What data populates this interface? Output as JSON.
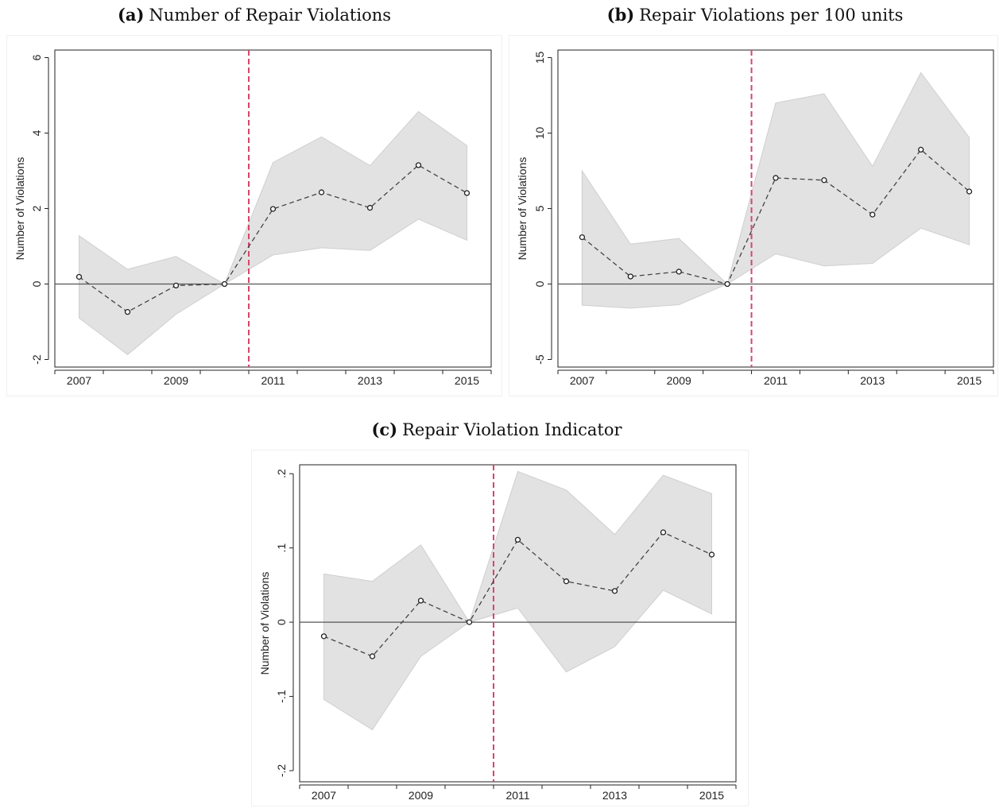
{
  "chart_data": [
    {
      "type": "line",
      "panel_label": "(a)",
      "title": "Number of Repair Violations",
      "ylabel": "Number of Violations",
      "xlabel": "",
      "x_ticks": [
        "2007",
        "2009",
        "2011",
        "2013",
        "2015"
      ],
      "y_ticks": [
        "-2",
        "0",
        "2",
        "4",
        "6"
      ],
      "ylim": [
        -2.2,
        6.2
      ],
      "xlim": [
        2006.5,
        2015.5
      ],
      "event_line_x": 2010.5,
      "x": [
        2007,
        2008,
        2009,
        2010,
        2011,
        2012,
        2013,
        2014,
        2015
      ],
      "series": [
        {
          "name": "",
          "values": [
            0.19,
            -0.74,
            -0.04,
            0,
            1.99,
            2.43,
            2.02,
            3.15,
            2.41
          ]
        }
      ],
      "ci_lower": [
        -0.9,
        -1.87,
        -0.8,
        0,
        0.77,
        0.96,
        0.89,
        1.72,
        1.16
      ],
      "ci_upper": [
        1.28,
        0.39,
        0.73,
        0,
        3.22,
        3.9,
        3.14,
        4.57,
        3.67
      ],
      "colors": {
        "event_line": "#d6466b",
        "band": "#e2e2e2",
        "series": "#444444"
      }
    },
    {
      "type": "line",
      "panel_label": "(b)",
      "title": "Repair Violations per 100 units",
      "ylabel": "Number of Violations",
      "xlabel": "",
      "x_ticks": [
        "2007",
        "2009",
        "2011",
        "2013",
        "2015"
      ],
      "y_ticks": [
        "-5",
        "0",
        "5",
        "10",
        "15"
      ],
      "ylim": [
        -5.5,
        15.5
      ],
      "xlim": [
        2006.5,
        2015.5
      ],
      "event_line_x": 2010.5,
      "x": [
        2007,
        2008,
        2009,
        2010,
        2011,
        2012,
        2013,
        2014,
        2015
      ],
      "series": [
        {
          "name": "",
          "values": [
            3.1,
            0.5,
            0.82,
            0,
            7.03,
            6.88,
            4.6,
            8.9,
            6.13
          ]
        }
      ],
      "ci_lower": [
        -1.4,
        -1.6,
        -1.37,
        0,
        2.0,
        1.2,
        1.37,
        3.7,
        2.6
      ],
      "ci_upper": [
        7.5,
        2.64,
        3.02,
        0,
        12.0,
        12.6,
        7.8,
        14.0,
        9.7
      ],
      "colors": {
        "event_line": "#d6466b",
        "band": "#e2e2e2",
        "series": "#444444"
      }
    },
    {
      "type": "line",
      "panel_label": "(c)",
      "title": "Repair Violation Indicator",
      "ylabel": "Number of Violations",
      "xlabel": "",
      "x_ticks": [
        "2007",
        "2009",
        "2011",
        "2013",
        "2015"
      ],
      "y_ticks": [
        "-.2",
        "-.1",
        "0",
        ".1",
        ".2"
      ],
      "y_tick_values": [
        -0.2,
        -0.1,
        0,
        0.1,
        0.2
      ],
      "ylim": [
        -0.215,
        0.212
      ],
      "xlim": [
        2006.5,
        2015.5
      ],
      "event_line_x": 2010.5,
      "x": [
        2007,
        2008,
        2009,
        2010,
        2011,
        2012,
        2013,
        2014,
        2015
      ],
      "series": [
        {
          "name": "",
          "values": [
            -0.019,
            -0.046,
            0.029,
            0,
            0.111,
            0.055,
            0.042,
            0.121,
            0.091
          ]
        }
      ],
      "ci_lower": [
        -0.104,
        -0.145,
        -0.046,
        0,
        0.019,
        -0.067,
        -0.033,
        0.043,
        0.011
      ],
      "ci_upper": [
        0.065,
        0.055,
        0.104,
        0,
        0.203,
        0.178,
        0.118,
        0.198,
        0.173
      ],
      "colors": {
        "event_line": "#d6466b",
        "band": "#e2e2e2",
        "series": "#444444"
      }
    }
  ]
}
